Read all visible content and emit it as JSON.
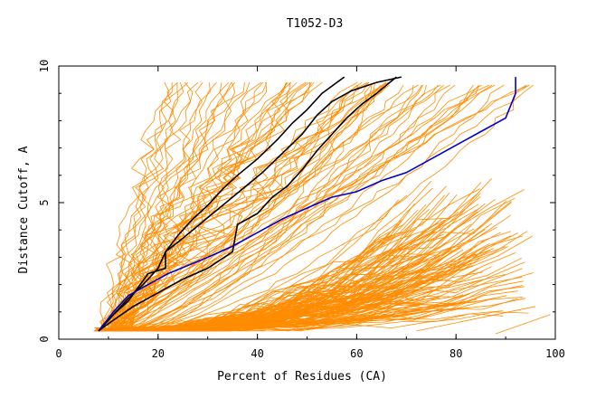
{
  "chart_data": {
    "type": "line",
    "title": "T1052-D3",
    "xlabel": "Percent of Residues (CA)",
    "ylabel": "Distance Cutoff, A",
    "xlim": [
      0,
      100
    ],
    "ylim": [
      0,
      10
    ],
    "xticks": [
      "0",
      "20",
      "40",
      "60",
      "80",
      "100"
    ],
    "yticks": [
      "0",
      "5",
      "10"
    ],
    "grid": false,
    "colors": {
      "models": "#ff8c00",
      "reference": "#000000",
      "highlight": "#0000cc"
    },
    "series": [
      {
        "group": "reference",
        "x": [
          8,
          11,
          14,
          17,
          20,
          21.5,
          24,
          27,
          30,
          33,
          36,
          40,
          44,
          47,
          50,
          53,
          57.5
        ],
        "y": [
          0.3,
          0.9,
          1.5,
          2.0,
          2.6,
          3.2,
          3.8,
          4.4,
          4.9,
          5.5,
          6.0,
          6.6,
          7.3,
          7.9,
          8.4,
          9.0,
          9.6
        ]
      },
      {
        "group": "reference",
        "x": [
          8,
          11,
          14,
          16,
          18,
          21.5,
          21.5,
          25,
          29,
          33,
          37,
          41,
          45,
          49,
          52,
          55,
          59,
          64,
          69
        ],
        "y": [
          0.3,
          0.9,
          1.4,
          1.9,
          2.4,
          2.6,
          3.2,
          3.7,
          4.3,
          4.9,
          5.5,
          6.1,
          6.8,
          7.5,
          8.2,
          8.7,
          9.1,
          9.4,
          9.6
        ]
      },
      {
        "group": "reference",
        "x": [
          8,
          11,
          15,
          20,
          25,
          30,
          35,
          36,
          40,
          43,
          46,
          49,
          52,
          55,
          58,
          61,
          64,
          66,
          68
        ],
        "y": [
          0.3,
          0.7,
          1.2,
          1.7,
          2.2,
          2.6,
          3.2,
          4.2,
          4.6,
          5.2,
          5.6,
          6.2,
          6.9,
          7.5,
          8.1,
          8.6,
          9.0,
          9.3,
          9.6
        ]
      },
      {
        "group": "highlight",
        "x": [
          8,
          11,
          14,
          18,
          22,
          26,
          30,
          35,
          40,
          45,
          50,
          55,
          60,
          65,
          70,
          75,
          80,
          85,
          90,
          92,
          92
        ],
        "y": [
          0.3,
          1.0,
          1.6,
          2.0,
          2.4,
          2.7,
          3.0,
          3.4,
          3.9,
          4.4,
          4.8,
          5.2,
          5.4,
          5.8,
          6.1,
          6.6,
          7.1,
          7.6,
          8.1,
          9.0,
          9.6
        ]
      }
    ]
  }
}
